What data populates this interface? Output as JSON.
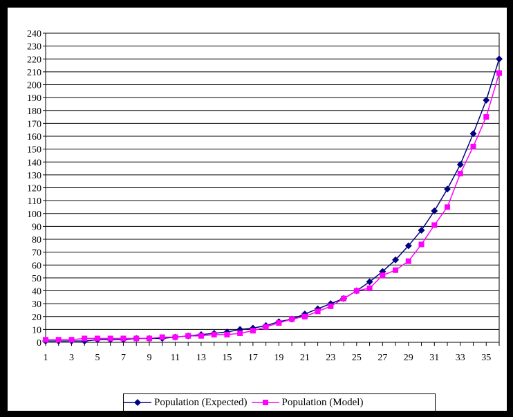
{
  "chart_data": {
    "type": "line",
    "title": "",
    "xlabel": "",
    "ylabel": "",
    "x": [
      1,
      2,
      3,
      4,
      5,
      6,
      7,
      8,
      9,
      10,
      11,
      12,
      13,
      14,
      15,
      16,
      17,
      18,
      19,
      20,
      21,
      22,
      23,
      24,
      25,
      26,
      27,
      28,
      29,
      30,
      31,
      32,
      33,
      34,
      35,
      36
    ],
    "x_tick_labels": [
      "1",
      "3",
      "5",
      "7",
      "9",
      "11",
      "13",
      "15",
      "17",
      "19",
      "21",
      "23",
      "25",
      "27",
      "29",
      "31",
      "33",
      "35"
    ],
    "ylim": [
      0,
      240
    ],
    "y_ticks": [
      0,
      10,
      20,
      30,
      40,
      50,
      60,
      70,
      80,
      90,
      100,
      110,
      120,
      130,
      140,
      150,
      160,
      170,
      180,
      190,
      200,
      210,
      220,
      230,
      240
    ],
    "grid": true,
    "legend_position": "bottom",
    "series": [
      {
        "name": "Population (Expected)",
        "color": "#000080",
        "marker": "diamond",
        "values": [
          1,
          1,
          1,
          1,
          2,
          2,
          2,
          3,
          3,
          3,
          4,
          5,
          6,
          7,
          8,
          10,
          11,
          13,
          16,
          18,
          22,
          26,
          30,
          34,
          40,
          47,
          55,
          64,
          75,
          87,
          102,
          119,
          138,
          162,
          188,
          220
        ]
      },
      {
        "name": "Population (Model)",
        "color": "#ff00ff",
        "marker": "square",
        "values": [
          2,
          2,
          2,
          3,
          3,
          3,
          3,
          3,
          3,
          4,
          4,
          5,
          5,
          6,
          6,
          7,
          9,
          12,
          15,
          18,
          20,
          24,
          28,
          34,
          40,
          42,
          52,
          56,
          63,
          76,
          91,
          105,
          131,
          152,
          175,
          209
        ]
      }
    ]
  }
}
